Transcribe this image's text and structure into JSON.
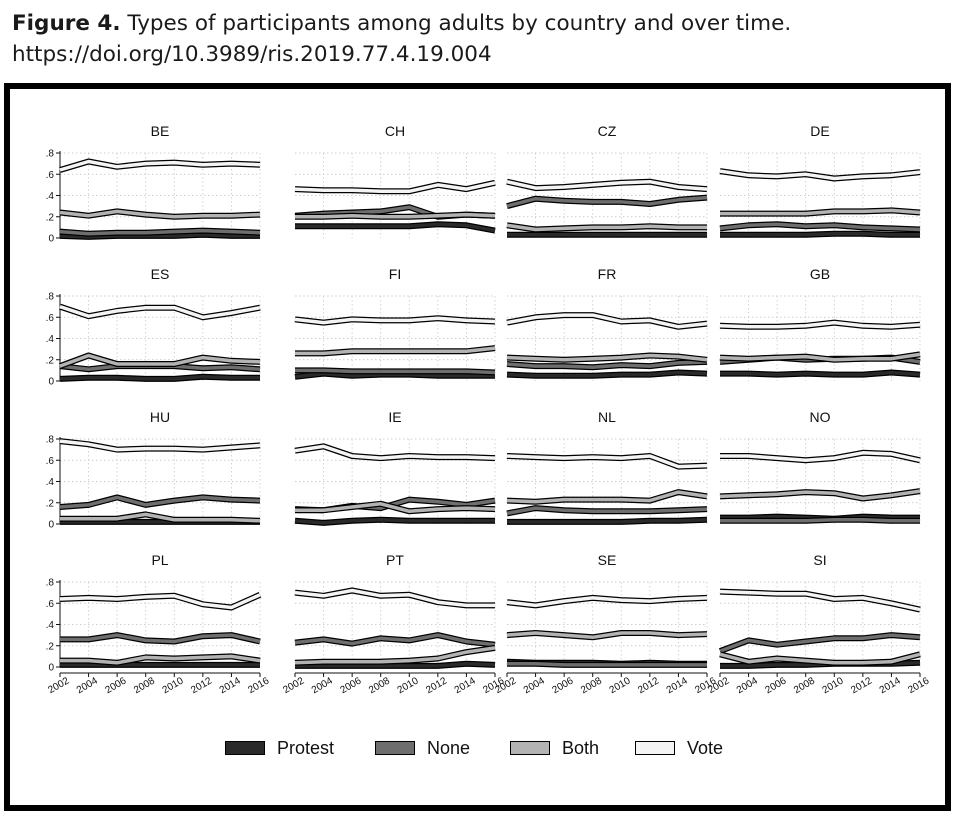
{
  "caption": {
    "figure_label": "Figure 4.",
    "title": "Types of participants among adults by country and over time.",
    "doi": "https://doi.org/10.3989/ris.2019.77.4.19.004"
  },
  "chart_data": {
    "type": "line",
    "layout": "small-multiples 4x4",
    "x": [
      2002,
      2004,
      2006,
      2008,
      2010,
      2012,
      2014,
      2016
    ],
    "x_tick_labels": [
      "2002",
      "2004",
      "2006",
      "2008",
      "2010",
      "2012",
      "2014",
      "2016"
    ],
    "ylim": [
      0,
      0.8
    ],
    "y_ticks": [
      0,
      0.2,
      0.4,
      0.6,
      0.8
    ],
    "y_tick_labels": [
      "0",
      ".2",
      ".4",
      ".6",
      ".8"
    ],
    "grid": true,
    "legend_position": "bottom",
    "legend": [
      "Protest",
      "None",
      "Both",
      "Vote"
    ],
    "series_colors": {
      "Protest": "#2a2a2a",
      "None": "#6e6e6e",
      "Both": "#b3b3b3",
      "Vote": "#f4f4f4"
    },
    "panels": [
      {
        "country": "BE",
        "series": {
          "Protest": [
            0.02,
            0.01,
            0.02,
            0.02,
            0.02,
            0.03,
            0.02,
            0.02
          ],
          "None": [
            0.06,
            0.04,
            0.05,
            0.05,
            0.06,
            0.07,
            0.06,
            0.05
          ],
          "Both": [
            0.24,
            0.21,
            0.25,
            0.22,
            0.2,
            0.21,
            0.21,
            0.22
          ],
          "Vote": [
            0.64,
            0.72,
            0.67,
            0.7,
            0.71,
            0.69,
            0.7,
            0.69
          ]
        }
      },
      {
        "country": "CH",
        "series": {
          "Protest": [
            0.11,
            0.11,
            0.11,
            0.11,
            0.11,
            0.13,
            0.12,
            0.07
          ],
          "None": [
            0.21,
            0.23,
            0.24,
            0.25,
            0.29,
            0.2,
            0.22,
            0.21
          ],
          "Both": [
            0.2,
            0.2,
            0.21,
            0.2,
            0.2,
            0.21,
            0.22,
            0.21
          ],
          "Vote": [
            0.46,
            0.45,
            0.45,
            0.44,
            0.44,
            0.5,
            0.46,
            0.52
          ]
        }
      },
      {
        "country": "CZ",
        "series": {
          "Protest": [
            0.03,
            0.03,
            0.03,
            0.03,
            0.03,
            0.03,
            0.03,
            0.03
          ],
          "None": [
            0.3,
            0.37,
            0.35,
            0.34,
            0.34,
            0.32,
            0.36,
            0.38
          ],
          "Both": [
            0.12,
            0.08,
            0.09,
            0.1,
            0.1,
            0.11,
            0.1,
            0.1
          ],
          "Vote": [
            0.53,
            0.47,
            0.48,
            0.5,
            0.52,
            0.53,
            0.48,
            0.46
          ]
        }
      },
      {
        "country": "DE",
        "series": {
          "Protest": [
            0.03,
            0.03,
            0.03,
            0.03,
            0.04,
            0.04,
            0.03,
            0.03
          ],
          "None": [
            0.09,
            0.12,
            0.13,
            0.11,
            0.12,
            0.1,
            0.09,
            0.08
          ],
          "Both": [
            0.23,
            0.23,
            0.23,
            0.23,
            0.25,
            0.25,
            0.26,
            0.24
          ],
          "Vote": [
            0.63,
            0.59,
            0.58,
            0.6,
            0.56,
            0.58,
            0.59,
            0.62
          ]
        }
      },
      {
        "country": "ES",
        "series": {
          "Protest": [
            0.02,
            0.03,
            0.03,
            0.02,
            0.02,
            0.04,
            0.03,
            0.03
          ],
          "None": [
            0.14,
            0.11,
            0.14,
            0.14,
            0.14,
            0.12,
            0.13,
            0.11
          ],
          "Both": [
            0.14,
            0.24,
            0.16,
            0.16,
            0.16,
            0.22,
            0.19,
            0.18
          ],
          "Vote": [
            0.7,
            0.61,
            0.66,
            0.69,
            0.69,
            0.6,
            0.64,
            0.69
          ]
        }
      },
      {
        "country": "FI",
        "series": {
          "Protest": [
            0.04,
            0.07,
            0.05,
            0.06,
            0.06,
            0.05,
            0.05,
            0.05
          ],
          "None": [
            0.1,
            0.1,
            0.09,
            0.09,
            0.09,
            0.09,
            0.09,
            0.08
          ],
          "Both": [
            0.26,
            0.26,
            0.28,
            0.28,
            0.28,
            0.28,
            0.28,
            0.31
          ],
          "Vote": [
            0.58,
            0.55,
            0.58,
            0.57,
            0.57,
            0.59,
            0.57,
            0.56
          ]
        }
      },
      {
        "country": "FR",
        "series": {
          "Protest": [
            0.06,
            0.05,
            0.05,
            0.05,
            0.06,
            0.06,
            0.08,
            0.07
          ],
          "None": [
            0.16,
            0.14,
            0.14,
            0.13,
            0.15,
            0.14,
            0.17,
            0.18
          ],
          "Both": [
            0.22,
            0.21,
            0.2,
            0.21,
            0.22,
            0.24,
            0.23,
            0.2
          ],
          "Vote": [
            0.55,
            0.6,
            0.62,
            0.62,
            0.56,
            0.57,
            0.51,
            0.54
          ]
        }
      },
      {
        "country": "GB",
        "series": {
          "Protest": [
            0.07,
            0.07,
            0.06,
            0.07,
            0.06,
            0.06,
            0.08,
            0.06
          ],
          "None": [
            0.18,
            0.2,
            0.22,
            0.2,
            0.21,
            0.21,
            0.22,
            0.18
          ],
          "Both": [
            0.22,
            0.21,
            0.22,
            0.23,
            0.2,
            0.21,
            0.21,
            0.25
          ],
          "Vote": [
            0.52,
            0.51,
            0.51,
            0.52,
            0.55,
            0.52,
            0.51,
            0.53
          ]
        }
      },
      {
        "country": "HU",
        "series": {
          "Protest": [
            0.02,
            0.02,
            0.02,
            0.02,
            0.02,
            0.02,
            0.02,
            0.02
          ],
          "None": [
            0.16,
            0.18,
            0.25,
            0.18,
            0.22,
            0.25,
            0.23,
            0.22
          ],
          "Both": [
            0.05,
            0.05,
            0.05,
            0.09,
            0.04,
            0.04,
            0.04,
            0.03
          ],
          "Vote": [
            0.78,
            0.75,
            0.7,
            0.71,
            0.71,
            0.7,
            0.72,
            0.74
          ]
        }
      },
      {
        "country": "IE",
        "series": {
          "Protest": [
            0.03,
            0.01,
            0.03,
            0.04,
            0.03,
            0.03,
            0.03,
            0.03
          ],
          "None": [
            0.14,
            0.13,
            0.17,
            0.15,
            0.23,
            0.21,
            0.18,
            0.22
          ],
          "Both": [
            0.13,
            0.13,
            0.16,
            0.19,
            0.12,
            0.14,
            0.15,
            0.14
          ],
          "Vote": [
            0.69,
            0.73,
            0.64,
            0.62,
            0.64,
            0.63,
            0.63,
            0.62
          ]
        }
      },
      {
        "country": "NL",
        "series": {
          "Protest": [
            0.02,
            0.02,
            0.02,
            0.02,
            0.02,
            0.03,
            0.03,
            0.04
          ],
          "None": [
            0.1,
            0.15,
            0.13,
            0.12,
            0.12,
            0.12,
            0.13,
            0.14
          ],
          "Both": [
            0.22,
            0.21,
            0.23,
            0.23,
            0.23,
            0.22,
            0.3,
            0.26
          ],
          "Vote": [
            0.64,
            0.63,
            0.62,
            0.63,
            0.62,
            0.64,
            0.54,
            0.55
          ]
        }
      },
      {
        "country": "NO",
        "series": {
          "Protest": [
            0.06,
            0.06,
            0.07,
            0.06,
            0.05,
            0.07,
            0.06,
            0.06
          ],
          "None": [
            0.03,
            0.03,
            0.03,
            0.03,
            0.04,
            0.04,
            0.03,
            0.03
          ],
          "Both": [
            0.26,
            0.27,
            0.28,
            0.3,
            0.29,
            0.24,
            0.27,
            0.31
          ],
          "Vote": [
            0.64,
            0.64,
            0.62,
            0.6,
            0.62,
            0.67,
            0.66,
            0.6
          ]
        }
      },
      {
        "country": "PL",
        "series": {
          "Protest": [
            0.02,
            0.02,
            0.02,
            0.02,
            0.02,
            0.02,
            0.02,
            0.02
          ],
          "None": [
            0.26,
            0.26,
            0.3,
            0.25,
            0.24,
            0.29,
            0.3,
            0.24
          ],
          "Both": [
            0.06,
            0.06,
            0.04,
            0.09,
            0.08,
            0.09,
            0.1,
            0.06
          ],
          "Vote": [
            0.64,
            0.65,
            0.64,
            0.66,
            0.67,
            0.59,
            0.56,
            0.68
          ]
        }
      },
      {
        "country": "PT",
        "series": {
          "Protest": [
            0.01,
            0.01,
            0.01,
            0.01,
            0.01,
            0.01,
            0.03,
            0.02
          ],
          "None": [
            0.23,
            0.26,
            0.22,
            0.27,
            0.25,
            0.3,
            0.24,
            0.21
          ],
          "Both": [
            0.04,
            0.05,
            0.05,
            0.05,
            0.06,
            0.08,
            0.14,
            0.18
          ],
          "Vote": [
            0.7,
            0.67,
            0.72,
            0.67,
            0.68,
            0.61,
            0.58,
            0.58
          ]
        }
      },
      {
        "country": "SE",
        "series": {
          "Protest": [
            0.05,
            0.04,
            0.04,
            0.04,
            0.03,
            0.04,
            0.03,
            0.03
          ],
          "None": [
            0.03,
            0.03,
            0.02,
            0.02,
            0.02,
            0.02,
            0.02,
            0.02
          ],
          "Both": [
            0.3,
            0.32,
            0.3,
            0.28,
            0.32,
            0.32,
            0.3,
            0.31
          ],
          "Vote": [
            0.61,
            0.58,
            0.62,
            0.65,
            0.63,
            0.62,
            0.64,
            0.65
          ]
        }
      },
      {
        "country": "SI",
        "series": {
          "Protest": [
            0.01,
            0.01,
            0.02,
            0.02,
            0.03,
            0.03,
            0.03,
            0.04
          ],
          "None": [
            0.15,
            0.25,
            0.21,
            0.24,
            0.27,
            0.27,
            0.3,
            0.28
          ],
          "Both": [
            0.12,
            0.05,
            0.08,
            0.06,
            0.04,
            0.04,
            0.05,
            0.12
          ],
          "Vote": [
            0.71,
            0.7,
            0.69,
            0.69,
            0.64,
            0.65,
            0.6,
            0.54
          ]
        }
      }
    ]
  }
}
